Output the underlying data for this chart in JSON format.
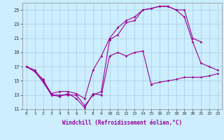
{
  "xlabel": "Windchill (Refroidissement éolien,°C)",
  "xlim": [
    -0.5,
    23.5
  ],
  "ylim": [
    11,
    26
  ],
  "xticks": [
    0,
    1,
    2,
    3,
    4,
    5,
    6,
    7,
    8,
    9,
    10,
    11,
    12,
    13,
    14,
    15,
    16,
    17,
    18,
    19,
    20,
    21,
    22,
    23
  ],
  "yticks": [
    11,
    13,
    15,
    17,
    19,
    21,
    23,
    25
  ],
  "bg_color": "#cceeff",
  "grid_color": "#aaccdd",
  "line_color": "#990099",
  "line1_x": [
    0,
    1,
    2,
    3,
    4,
    5,
    6,
    7,
    8,
    9,
    10,
    11,
    12,
    13,
    14,
    15,
    16,
    17,
    18,
    19,
    20,
    21
  ],
  "line1_y": [
    17.0,
    16.5,
    15.0,
    13.2,
    13.5,
    13.5,
    13.2,
    12.5,
    16.5,
    18.5,
    21.0,
    22.5,
    23.5,
    24.0,
    25.0,
    25.2,
    25.5,
    25.5,
    25.0,
    25.0,
    21.0,
    20.5
  ],
  "line2_x": [
    0,
    1,
    2,
    3,
    4,
    5,
    6,
    7,
    8,
    9,
    10,
    11,
    12,
    13,
    14,
    15,
    16,
    17,
    18,
    19,
    20,
    21,
    22,
    23
  ],
  "line2_y": [
    17.0,
    16.3,
    15.2,
    13.0,
    13.0,
    13.0,
    13.0,
    11.5,
    13.0,
    13.5,
    20.8,
    21.5,
    23.2,
    23.5,
    25.0,
    25.2,
    25.5,
    25.5,
    25.0,
    24.0,
    20.5,
    17.5,
    17.0,
    16.5
  ],
  "line3_x": [
    0,
    1,
    2,
    3,
    4,
    5,
    6,
    7,
    8,
    9,
    10,
    11,
    12,
    13,
    14,
    15,
    16,
    17,
    18,
    19,
    20,
    21,
    22,
    23
  ],
  "line3_y": [
    17.0,
    16.3,
    14.8,
    13.0,
    12.8,
    13.2,
    12.5,
    11.2,
    13.2,
    13.0,
    18.5,
    19.0,
    18.5,
    19.0,
    19.2,
    14.5,
    14.8,
    15.0,
    15.2,
    15.5,
    15.5,
    15.5,
    15.7,
    16.0
  ]
}
